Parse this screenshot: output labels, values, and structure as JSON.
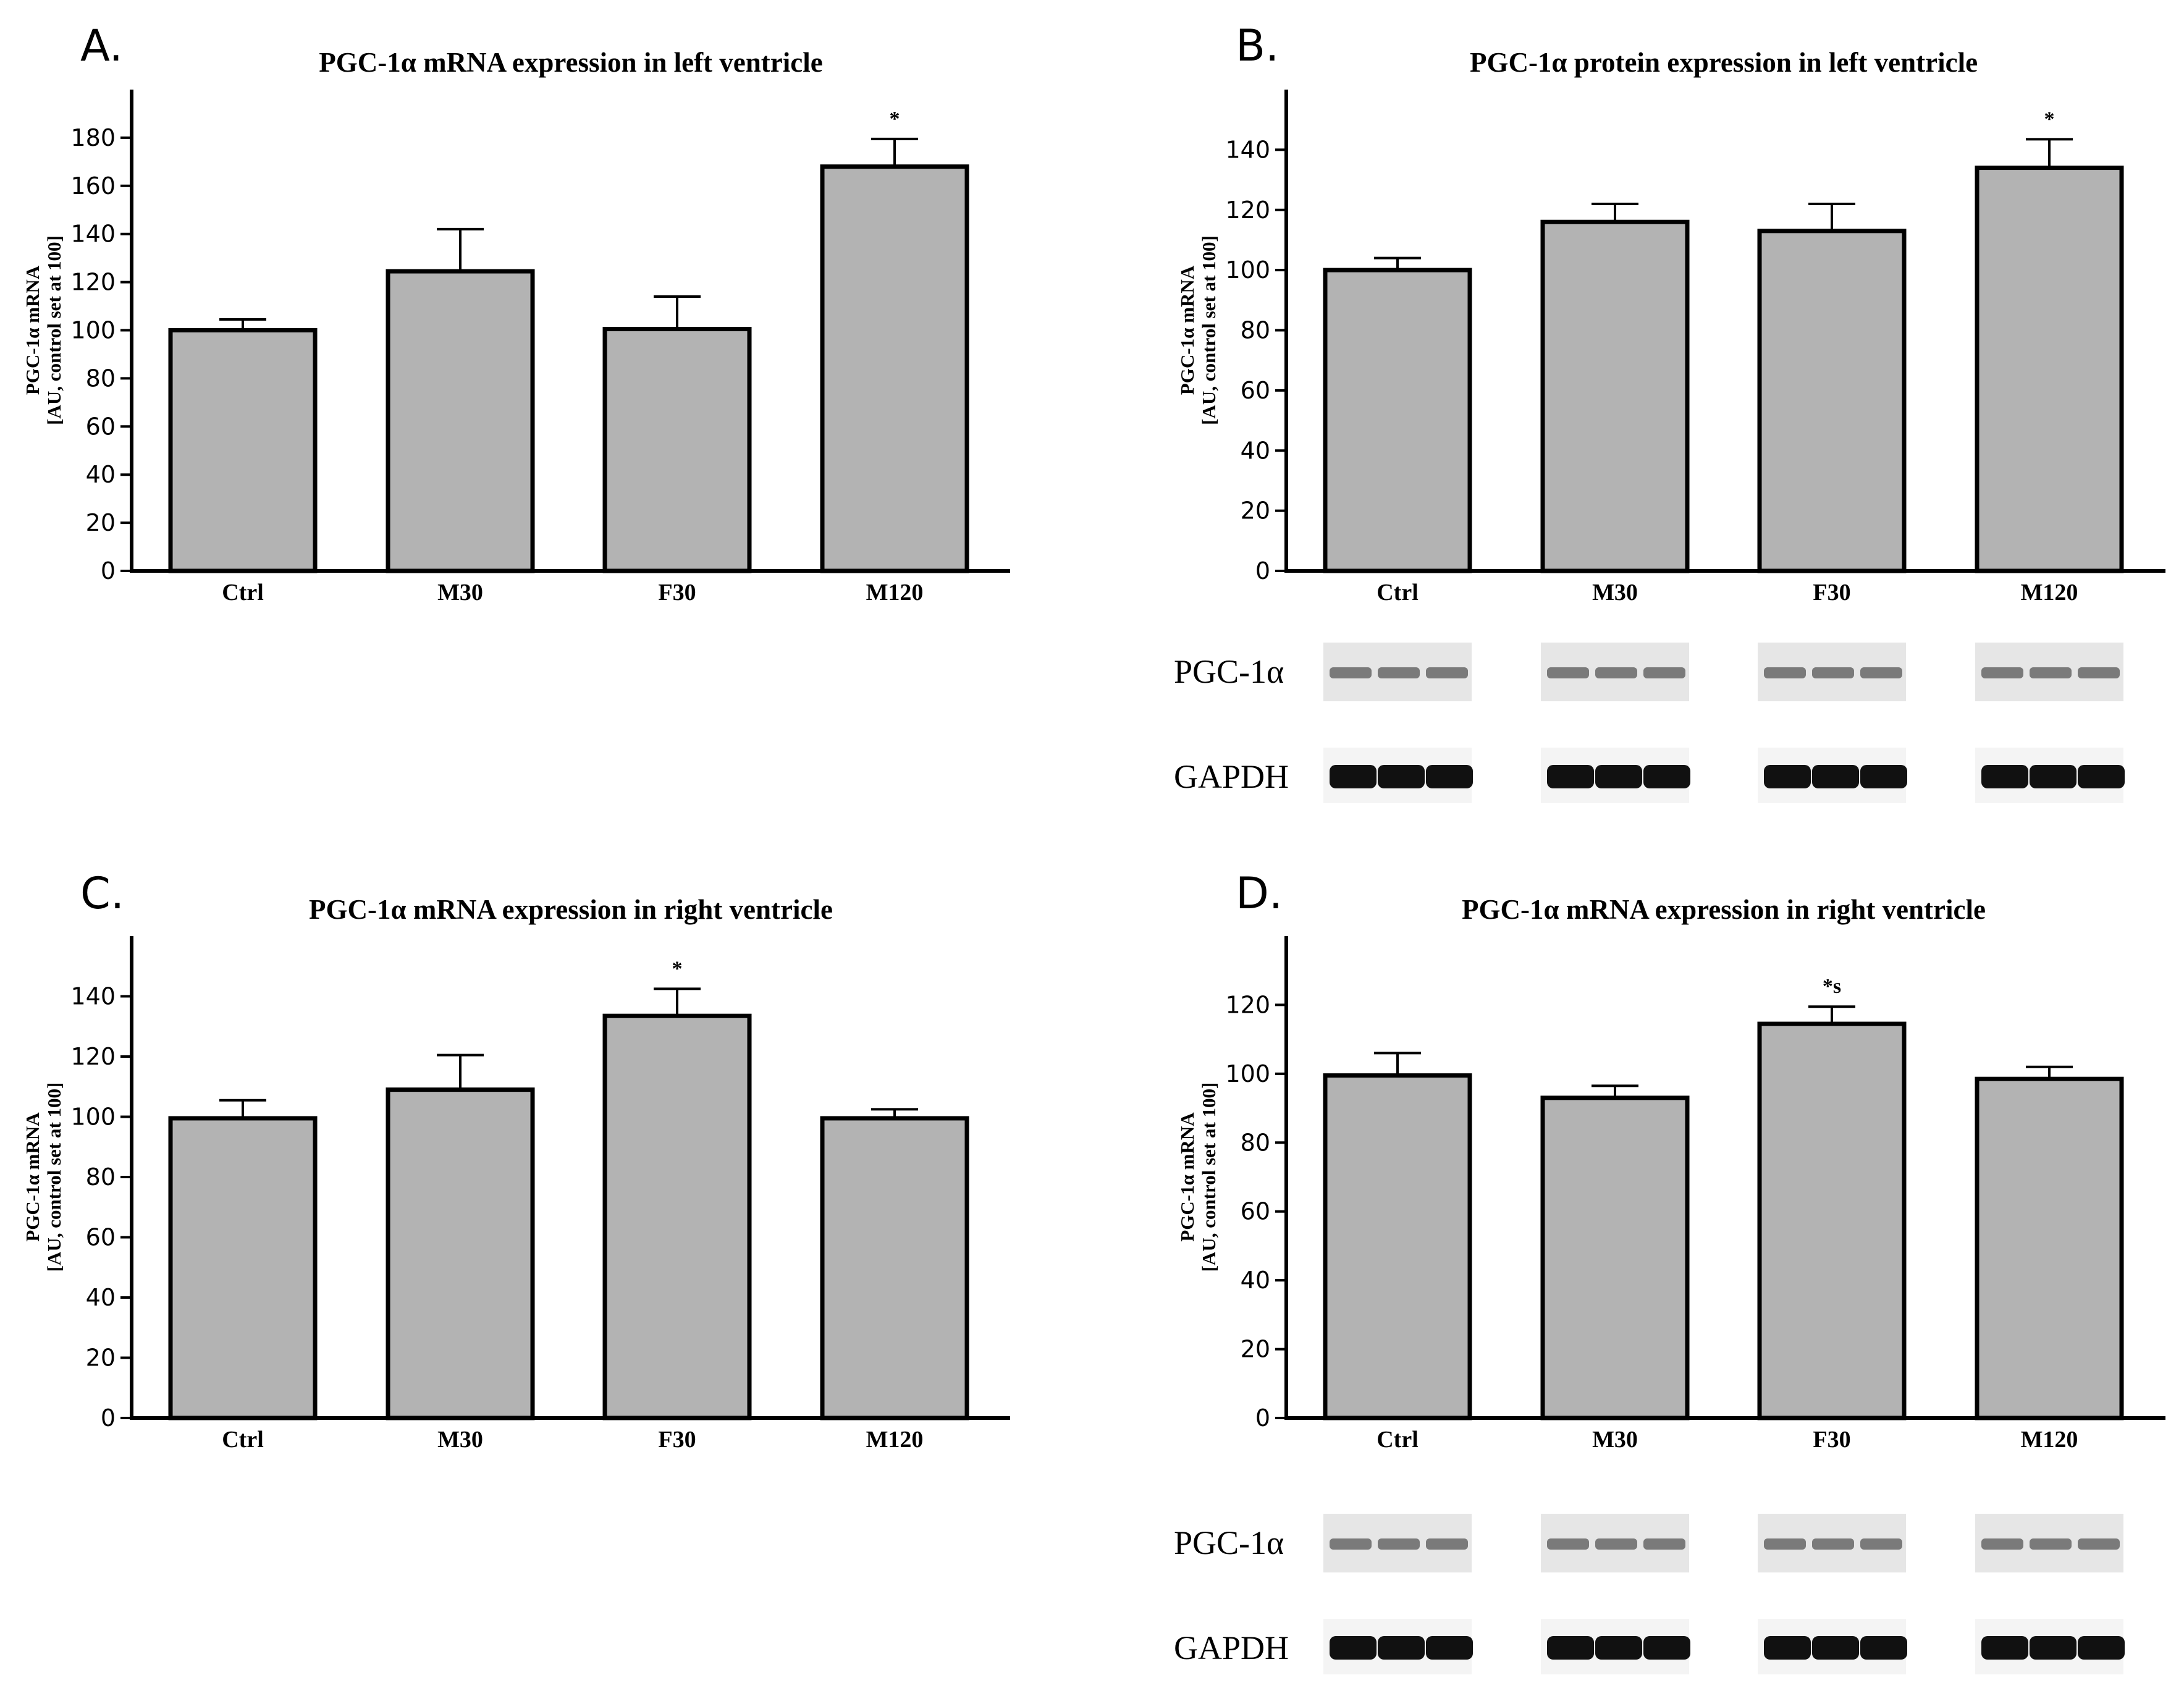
{
  "colors": {
    "bar": "#b3b3b3",
    "axis": "#000000"
  },
  "blot_labels": [
    "PGC-1α",
    "GAPDH"
  ],
  "chart_data": [
    {
      "type": "bar",
      "panel": "A.",
      "title": "PGC-1α mRNA expression in left ventricle",
      "ylabel_line1": "PGC-1α mRNA",
      "ylabel_line2": "[AU, control set at 100]",
      "categories": [
        "Ctrl",
        "M30",
        "F30",
        "M120"
      ],
      "values": [
        100,
        124.5,
        100.5,
        168
      ],
      "errors": [
        4.5,
        17.5,
        13.5,
        11.5
      ],
      "significance": [
        "",
        "",
        "",
        "*"
      ],
      "ylim": [
        0,
        200
      ],
      "yticks": [
        0,
        20,
        40,
        60,
        80,
        100,
        120,
        140,
        160,
        180
      ],
      "has_blot": false
    },
    {
      "type": "bar",
      "panel": "B.",
      "title": "PGC-1α protein expression in left ventricle",
      "ylabel_line1": "PGC-1α mRNA",
      "ylabel_line2": "[AU, control set at 100]",
      "categories": [
        "Ctrl",
        "M30",
        "F30",
        "M120"
      ],
      "values": [
        100,
        116,
        113,
        134
      ],
      "errors": [
        4,
        6,
        9,
        9.5
      ],
      "significance": [
        "",
        "",
        "",
        "*"
      ],
      "ylim": [
        0,
        160
      ],
      "yticks": [
        0,
        20,
        40,
        60,
        80,
        100,
        120,
        140
      ],
      "has_blot": true
    },
    {
      "type": "bar",
      "panel": "C.",
      "title": "PGC-1α mRNA expression in right ventricle",
      "ylabel_line1": "PGC-1α mRNA",
      "ylabel_line2": "[AU, control set at 100]",
      "categories": [
        "Ctrl",
        "M30",
        "F30",
        "M120"
      ],
      "values": [
        99.5,
        109,
        133.5,
        99.5
      ],
      "errors": [
        6,
        11.5,
        9,
        3
      ],
      "significance": [
        "",
        "",
        "*",
        ""
      ],
      "ylim": [
        0,
        160
      ],
      "yticks": [
        0,
        20,
        40,
        60,
        80,
        100,
        120,
        140
      ],
      "has_blot": false
    },
    {
      "type": "bar",
      "panel": "D.",
      "title": "PGC-1α mRNA expression in right ventricle",
      "ylabel_line1": "PGC-1α mRNA",
      "ylabel_line2": "[AU, control set at 100]",
      "categories": [
        "Ctrl",
        "M30",
        "F30",
        "M120"
      ],
      "values": [
        99.5,
        93,
        114.5,
        98.5
      ],
      "errors": [
        6.5,
        3.5,
        5,
        3.5
      ],
      "significance": [
        "",
        "",
        "*s",
        ""
      ],
      "ylim": [
        0,
        140
      ],
      "yticks": [
        0,
        20,
        40,
        60,
        80,
        100,
        120
      ],
      "has_blot": true
    }
  ]
}
